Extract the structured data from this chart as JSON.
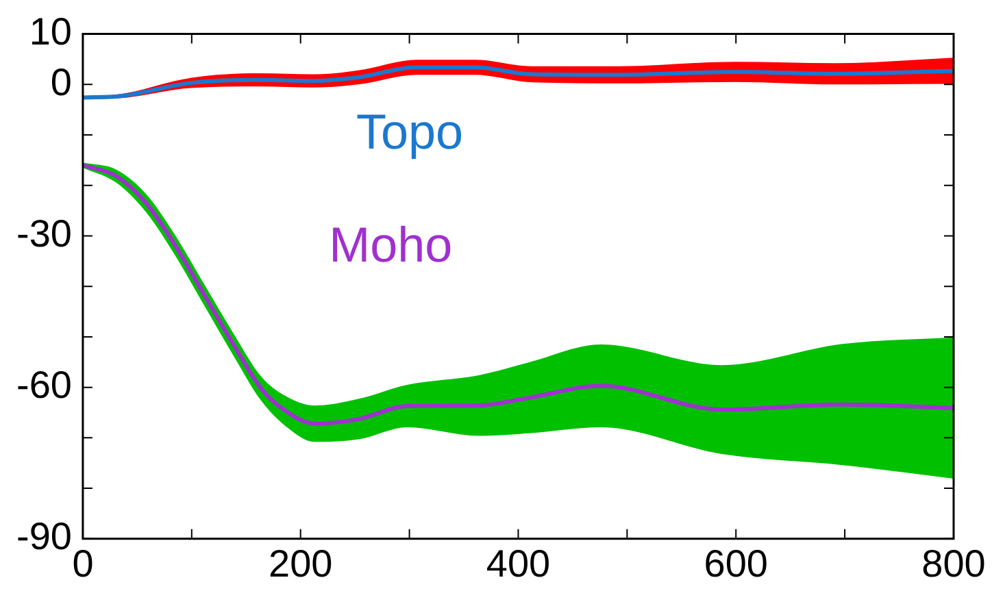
{
  "chart_data": {
    "type": "line",
    "xlim": [
      0,
      800
    ],
    "ylim": [
      -90,
      10
    ],
    "xticks": [
      0,
      {
        "value": 100,
        "label": null
      },
      200,
      {
        "value": 300,
        "label": null
      },
      400,
      {
        "value": 500,
        "label": null
      },
      600,
      {
        "value": 700,
        "label": null
      },
      800
    ],
    "yticks": [
      -90,
      {
        "value": -80,
        "label": null
      },
      {
        "value": -70,
        "label": null
      },
      -60,
      {
        "value": -50,
        "label": null
      },
      {
        "value": -40,
        "label": null
      },
      -30,
      {
        "value": -20,
        "label": null
      },
      {
        "value": -10,
        "label": null
      },
      0,
      10
    ],
    "grid": false,
    "legend": false,
    "marker": "none",
    "line_style": "solid",
    "series": [
      {
        "name": "Topo",
        "color": "#1a78d0",
        "x": [
          0,
          35,
          99,
          163,
          211,
          253,
          307,
          360,
          413,
          493,
          600,
          691,
          800
        ],
        "values": [
          -2.6,
          -2.3,
          0.3,
          0.9,
          0.7,
          1.4,
          3.4,
          3.4,
          2.0,
          1.9,
          2.5,
          2.1,
          2.7
        ],
        "lower": [
          -2.9,
          -2.7,
          -0.7,
          -0.4,
          -0.6,
          0,
          1.9,
          1.9,
          0.4,
          0.2,
          0.5,
          0,
          0.1
        ],
        "upper": [
          -2.3,
          -1.9,
          1.3,
          2.2,
          2.0,
          2.8,
          4.9,
          4.9,
          3.6,
          3.6,
          4.5,
          4.2,
          5.3
        ]
      },
      {
        "name": "Moho",
        "color": "#a030d0",
        "x": [
          0,
          31,
          58,
          84,
          111,
          138,
          164,
          187,
          213,
          253,
          298,
          364,
          409,
          476,
          587,
          698,
          800
        ],
        "values": [
          -16.0,
          -18.2,
          -23.5,
          -31.6,
          -41.5,
          -51.4,
          -60.3,
          -64.8,
          -67.2,
          -66.3,
          -63.7,
          -63.6,
          -62.1,
          -59.7,
          -64.4,
          -63.4,
          -64.1
        ],
        "lower": [
          -16.5,
          -19.5,
          -25.3,
          -33.6,
          -43.6,
          -53.6,
          -62.7,
          -67.8,
          -70.8,
          -70.3,
          -67.9,
          -69.6,
          -69.1,
          -67.9,
          -73.2,
          -75.4,
          -78.1
        ],
        "upper": [
          -15.5,
          -16.9,
          -21.7,
          -29.6,
          -39.4,
          -49.2,
          -57.9,
          -61.8,
          -63.6,
          -62.3,
          -59.5,
          -57.6,
          -55.1,
          -51.5,
          -55.6,
          -51.4,
          -50.1
        ]
      }
    ]
  }
}
